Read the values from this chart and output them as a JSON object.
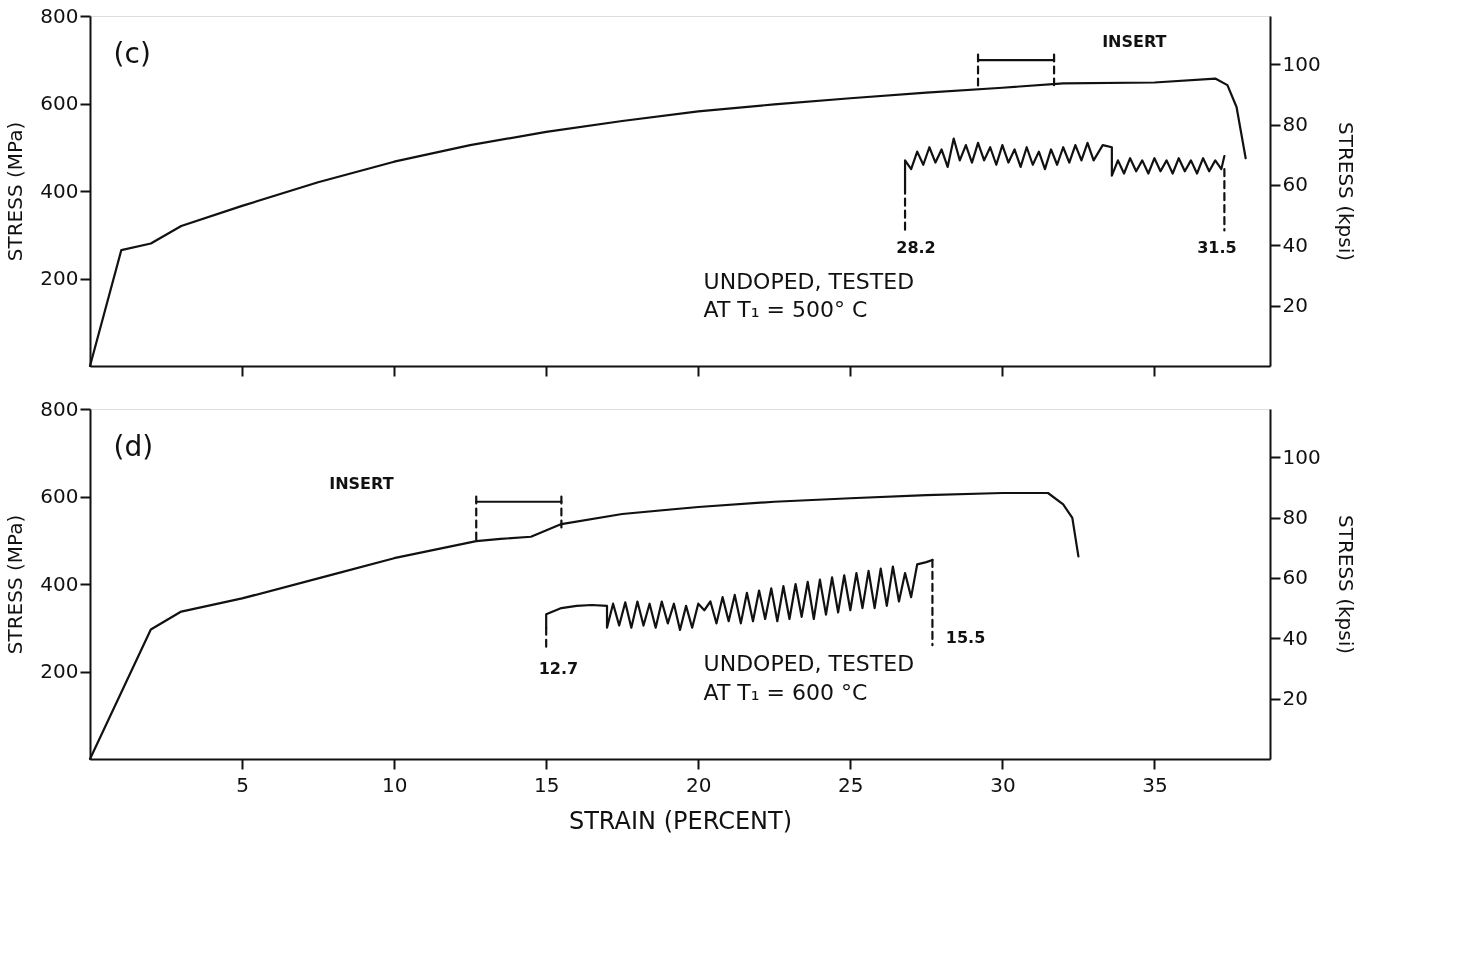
{
  "chart_data": [
    {
      "type": "line",
      "ylabel": "STRESS (MPa)",
      "y2label": "STRESS (kpsi)",
      "xlim": [
        0,
        38.8
      ],
      "xticks": [
        5,
        10,
        15,
        20,
        25,
        30,
        35
      ],
      "ylim": [
        0,
        800
      ],
      "yticks": [
        200,
        400,
        600,
        800
      ],
      "y2lim": [
        0,
        116
      ],
      "y2ticks": [
        20,
        40,
        60,
        80,
        100
      ],
      "tick_labels": "y",
      "grid": false,
      "series": [
        {
          "color": "#111111",
          "x": [
            0,
            1.03,
            2,
            3,
            5,
            7.5,
            10,
            12.5,
            15,
            17.5,
            20,
            22.5,
            25,
            27.5,
            30,
            32,
            35,
            37,
            37.4,
            37.7,
            38
          ],
          "values": [
            0,
            265,
            280,
            320,
            366,
            420,
            467,
            505,
            535,
            560,
            582,
            598,
            612,
            625,
            636,
            646,
            648,
            657,
            642,
            592,
            475
          ]
        },
        {
          "color": "#111111",
          "x": [
            26.8,
            26.8,
            27.0,
            27.2,
            27.4,
            27.6,
            27.8,
            28.0,
            28.2,
            28.4,
            28.6,
            28.8,
            29.0,
            29.2,
            29.4,
            29.6,
            29.8,
            30.0,
            30.2,
            30.4,
            30.6,
            30.8,
            31.0,
            31.2,
            31.4,
            31.6,
            31.8,
            32.0,
            32.2,
            32.4,
            32.6,
            32.8,
            33.0,
            33.3,
            33.6,
            33.6,
            33.8,
            34.0,
            34.2,
            34.4,
            34.6,
            34.8,
            35.0,
            35.2,
            35.4,
            35.6,
            35.8,
            36.0,
            36.2,
            36.4,
            36.6,
            36.8,
            37.0,
            37.2,
            37.3
          ],
          "values": [
            410,
            470,
            450,
            490,
            460,
            500,
            465,
            495,
            455,
            520,
            470,
            505,
            465,
            510,
            470,
            500,
            460,
            505,
            465,
            495,
            455,
            500,
            460,
            490,
            450,
            495,
            460,
            500,
            465,
            505,
            470,
            510,
            470,
            505,
            500,
            435,
            470,
            440,
            475,
            445,
            470,
            440,
            475,
            445,
            470,
            440,
            475,
            445,
            470,
            440,
            475,
            445,
            470,
            450,
            480
          ]
        },
        {
          "color": "#111111",
          "line_style": "dashed",
          "x": [
            26.8,
            26.8
          ],
          "values": [
            410,
            310
          ]
        },
        {
          "color": "#111111",
          "line_style": "dashed",
          "x": [
            37.3,
            37.3
          ],
          "values": [
            450,
            310
          ]
        },
        {
          "color": "#111111",
          "x": [
            29.2,
            31.7
          ],
          "values": [
            699,
            699
          ]
        },
        {
          "color": "#111111",
          "line_style": "dashed",
          "x": [
            29.2,
            29.2
          ],
          "values": [
            712,
            636
          ]
        },
        {
          "color": "#111111",
          "line_style": "dashed",
          "x": [
            31.7,
            31.7
          ],
          "values": [
            712,
            642
          ]
        }
      ],
      "annotations": [
        "(c)",
        "UNDOPED, TESTED\nAT T₁ = 500° C",
        "28.2",
        "31.5",
        "INSERT"
      ]
    },
    {
      "type": "line",
      "xlabel": "STRAIN (PERCENT)",
      "ylabel": "STRESS (MPa)",
      "y2label": "STRESS (kpsi)",
      "xlim": [
        0,
        38.8
      ],
      "xticks": [
        5,
        10,
        15,
        20,
        25,
        30,
        35
      ],
      "ylim": [
        0,
        800
      ],
      "yticks": [
        200,
        400,
        600,
        800
      ],
      "y2lim": [
        0,
        116
      ],
      "y2ticks": [
        20,
        40,
        60,
        80,
        100
      ],
      "grid": false,
      "series": [
        {
          "color": "#111111",
          "x": [
            0,
            2,
            3,
            5,
            8,
            10,
            12.7,
            13.5,
            14.5,
            15.5,
            17.5,
            20,
            22.5,
            25,
            27.5,
            30,
            31.5,
            32,
            32.3,
            32.5
          ],
          "values": [
            0,
            296,
            337,
            367,
            422,
            459,
            498,
            503,
            508,
            537,
            560,
            576,
            588,
            596,
            603,
            608,
            608,
            582,
            551,
            463
          ]
        },
        {
          "color": "#111111",
          "x": [
            15.0,
            15.0,
            15.5,
            16.0,
            16.5,
            17.0,
            17.0,
            17.2,
            17.4,
            17.6,
            17.8,
            18.0,
            18.2,
            18.4,
            18.6,
            18.8,
            19.0,
            19.2,
            19.4,
            19.6,
            19.8,
            20.0,
            20.2,
            20.4,
            20.6,
            20.8,
            21.0,
            21.2,
            21.4,
            21.6,
            21.8,
            22.0,
            22.2,
            22.4,
            22.6,
            22.8,
            23.0,
            23.2,
            23.4,
            23.6,
            23.8,
            24.0,
            24.2,
            24.4,
            24.6,
            24.8,
            25.0,
            25.2,
            25.4,
            25.6,
            25.8,
            26.0,
            26.2,
            26.4,
            26.6,
            26.8,
            27.0,
            27.2,
            27.5,
            27.7
          ],
          "values": [
            300,
            331,
            345,
            350,
            352,
            350,
            300,
            355,
            305,
            358,
            300,
            360,
            305,
            355,
            300,
            360,
            310,
            355,
            295,
            350,
            300,
            355,
            340,
            360,
            310,
            370,
            315,
            375,
            310,
            380,
            315,
            385,
            320,
            390,
            315,
            395,
            320,
            400,
            325,
            405,
            320,
            410,
            330,
            415,
            335,
            420,
            340,
            425,
            345,
            430,
            345,
            435,
            350,
            440,
            360,
            425,
            370,
            445,
            450,
            455
          ]
        },
        {
          "color": "#111111",
          "line_style": "dashed",
          "x": [
            15.0,
            15.0
          ],
          "values": [
            300,
            250
          ]
        },
        {
          "color": "#111111",
          "line_style": "dashed",
          "x": [
            27.7,
            27.7
          ],
          "values": [
            455,
            260
          ]
        },
        {
          "color": "#111111",
          "x": [
            12.7,
            15.5
          ],
          "values": [
            588,
            588
          ]
        },
        {
          "color": "#111111",
          "line_style": "dashed",
          "x": [
            12.7,
            12.7
          ],
          "values": [
            600,
            500
          ]
        },
        {
          "color": "#111111",
          "line_style": "dashed",
          "x": [
            15.5,
            15.5
          ],
          "values": [
            600,
            522
          ]
        }
      ],
      "annotations": [
        "(d)",
        "UNDOPED, TESTED\nAT T₁ = 600 °C",
        "12.7",
        "15.5",
        "INSERT"
      ]
    }
  ]
}
